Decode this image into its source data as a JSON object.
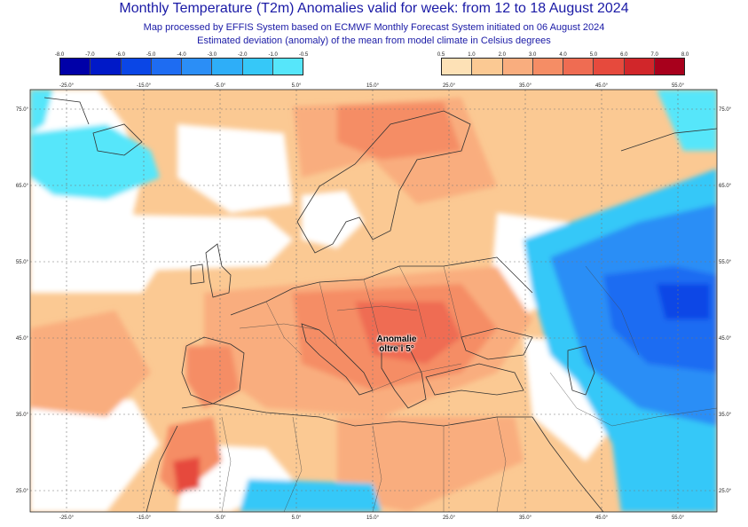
{
  "header": {
    "title": "Monthly Temperature (T2m) Anomalies valid for week: from 12 to 18 August 2024",
    "subtitle1": "Map processed by EFFIS System based on ECMWF Monthly Forecast System initiated on 06 August 2024",
    "subtitle2": "Estimated deviation (anomaly) of the mean from model climate in Celsius degrees"
  },
  "colorbar_cold": {
    "labels": [
      "-8.0",
      "-7.0",
      "-6.0",
      "-5.0",
      "-4.0",
      "-3.0",
      "-2.0",
      "-1.0",
      "-0.5"
    ],
    "colors": [
      "#0000a8",
      "#0019c8",
      "#0a46e6",
      "#1e6cf2",
      "#2b8ef6",
      "#2eaef8",
      "#36c8f8",
      "#56e6fa"
    ]
  },
  "colorbar_warm": {
    "labels": [
      "0.5",
      "1.0",
      "2.0",
      "3.0",
      "4.0",
      "5.0",
      "6.0",
      "7.0",
      "8.0"
    ],
    "colors": [
      "#fde1b6",
      "#fbc993",
      "#f9ad7e",
      "#f58d65",
      "#ef6c52",
      "#e64a3d",
      "#d1262a",
      "#a8001c"
    ]
  },
  "map": {
    "ocean_color": "#ffffff",
    "land_line_color": "#333333",
    "x_labels": [
      "-25.0°",
      "-15.0°",
      "-5.0°",
      "5.0°",
      "15.0°",
      "25.0°",
      "35.0°",
      "45.0°",
      "55.0°"
    ],
    "y_labels": [
      "75.0°",
      "65.0°",
      "55.0°",
      "45.0°",
      "35.0°",
      "25.0°"
    ]
  },
  "annotation": {
    "line1": "Anomalie",
    "line2": "oltre i 5°"
  }
}
